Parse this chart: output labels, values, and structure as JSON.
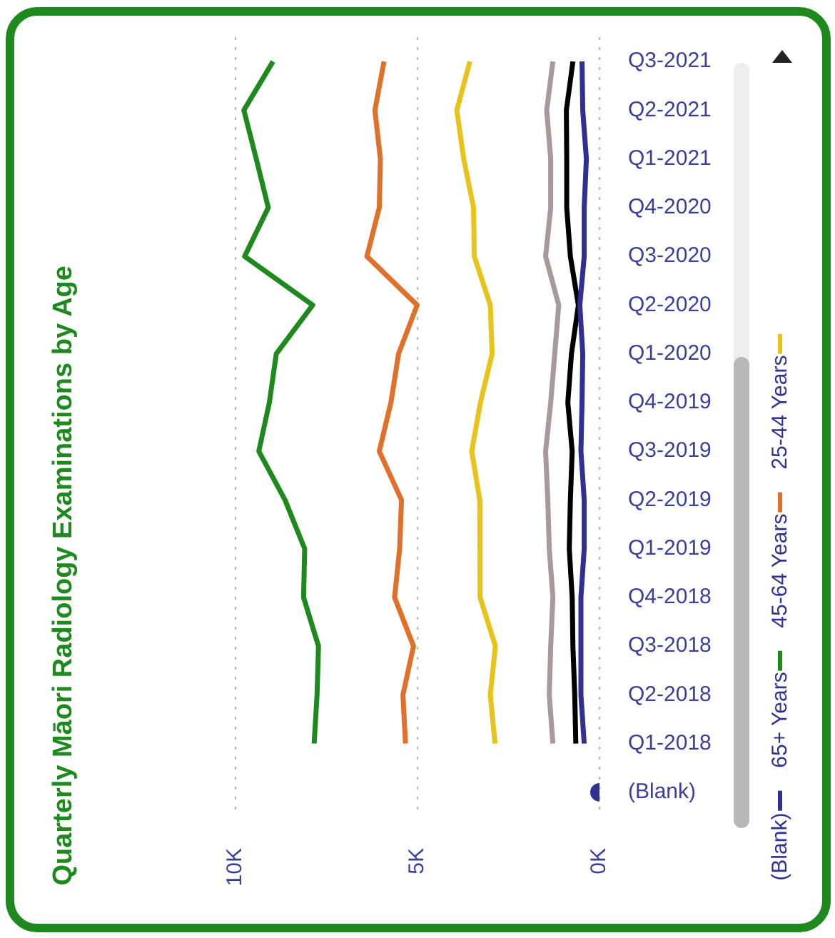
{
  "chart_data": {
    "type": "line",
    "title": "Quarterly Māori Radiology Examinations by Age",
    "orientation": "horizontal",
    "categories": [
      "Q3-2021",
      "Q2-2021",
      "Q1-2021",
      "Q4-2020",
      "Q3-2020",
      "Q2-2020",
      "Q1-2020",
      "Q4-2019",
      "Q3-2019",
      "Q2-2019",
      "Q1-2019",
      "Q4-2018",
      "Q3-2018",
      "Q2-2018",
      "Q1-2018",
      "(Blank)"
    ],
    "series": [
      {
        "name": "(Blank)",
        "color": "#2e3192",
        "values": [
          480,
          460,
          360,
          420,
          420,
          540,
          460,
          480,
          510,
          420,
          420,
          510,
          510,
          510,
          420,
          null
        ]
      },
      {
        "name": "65+ Years",
        "color": "#1e8a1e",
        "values": [
          8970,
          9770,
          9430,
          9100,
          9750,
          7880,
          8880,
          9070,
          9360,
          8640,
          8100,
          8130,
          7720,
          7760,
          7840,
          null
        ]
      },
      {
        "name": "45-64 Years",
        "color": "#e0702a",
        "values": [
          5920,
          6170,
          6020,
          6050,
          6390,
          5010,
          5520,
          5730,
          6050,
          5440,
          5490,
          5630,
          5110,
          5400,
          5330,
          null
        ]
      },
      {
        "name": "25-44 Years",
        "color": "#e8c41a",
        "values": [
          3560,
          3920,
          3730,
          3460,
          3440,
          3000,
          2950,
          3270,
          3510,
          3290,
          3290,
          3270,
          2860,
          3000,
          2870,
          null
        ]
      },
      {
        "color": "#a89a9a",
        "values": [
          1280,
          1450,
          1340,
          1340,
          1480,
          1120,
          1230,
          1340,
          1480,
          1420,
          1380,
          1280,
          1340,
          1380,
          1280,
          null
        ]
      },
      {
        "color": "#000000",
        "values": [
          730,
          910,
          900,
          900,
          800,
          580,
          770,
          870,
          750,
          800,
          830,
          750,
          730,
          680,
          650,
          null
        ]
      },
      {
        "type": "scatter",
        "marker": "circle",
        "color": "#2e3192",
        "x": [
          "(Blank)"
        ],
        "values": [
          0
        ]
      }
    ],
    "xlim": [
      10000,
      0
    ],
    "xticks": [
      {
        "value": 0,
        "label": "0K"
      },
      {
        "value": 5000,
        "label": "5K"
      },
      {
        "value": 10000,
        "label": "10K"
      }
    ],
    "grid": "x",
    "legend": "right",
    "marker": "none",
    "line_style": "solid"
  }
}
